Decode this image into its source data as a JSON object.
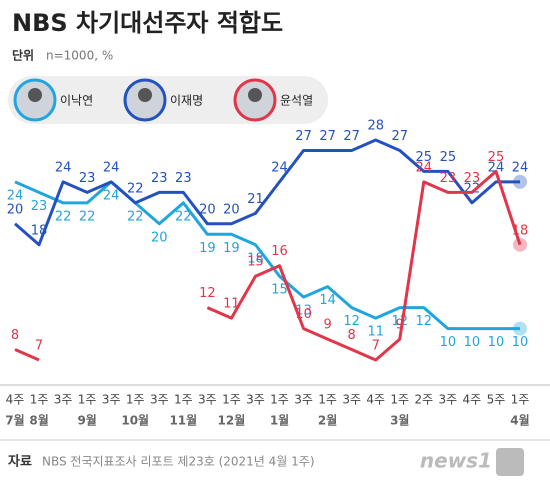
{
  "chart_data": {
    "type": "line",
    "title": "NBS 차기대선주자 적합도",
    "unit_label": "단위",
    "unit": "n=1000, %",
    "categories": [
      "4주",
      "1주",
      "3주",
      "1주",
      "3주",
      "1주",
      "3주",
      "1주",
      "3주",
      "1주",
      "3주",
      "1주",
      "3주",
      "1주",
      "3주",
      "4주",
      "1주",
      "2주",
      "3주",
      "4주",
      "5주",
      "1주"
    ],
    "months": [
      "7월",
      "8월",
      null,
      "9월",
      null,
      "10월",
      null,
      "11월",
      null,
      "12월",
      null,
      "1월",
      null,
      "2월",
      null,
      null,
      "3월",
      null,
      null,
      null,
      null,
      "4월"
    ],
    "ylim": [
      5,
      30
    ],
    "series": [
      {
        "name": "이낙연",
        "color": "#20a6dc",
        "values": [
          24,
          23,
          22,
          22,
          24,
          22,
          20,
          22,
          19,
          19,
          18,
          15,
          13,
          14,
          12,
          11,
          12,
          12,
          10,
          10,
          10,
          10
        ]
      },
      {
        "name": "이재명",
        "color": "#2352c0",
        "values": [
          20,
          18,
          24,
          23,
          24,
          22,
          23,
          23,
          20,
          20,
          21,
          24,
          27,
          27,
          27,
          28,
          27,
          25,
          25,
          22,
          24,
          24
        ]
      },
      {
        "name": "윤석열",
        "color": "#e2354a",
        "values": [
          8,
          7,
          null,
          null,
          null,
          null,
          null,
          null,
          12,
          11,
          15,
          16,
          10,
          9,
          8,
          7,
          9,
          24,
          23,
          23,
          25,
          18
        ]
      }
    ],
    "source_label": "자료",
    "source": "NBS 전국지표조사 리포트 제23호 (2021년 4월 1주)",
    "logo": "news1"
  }
}
